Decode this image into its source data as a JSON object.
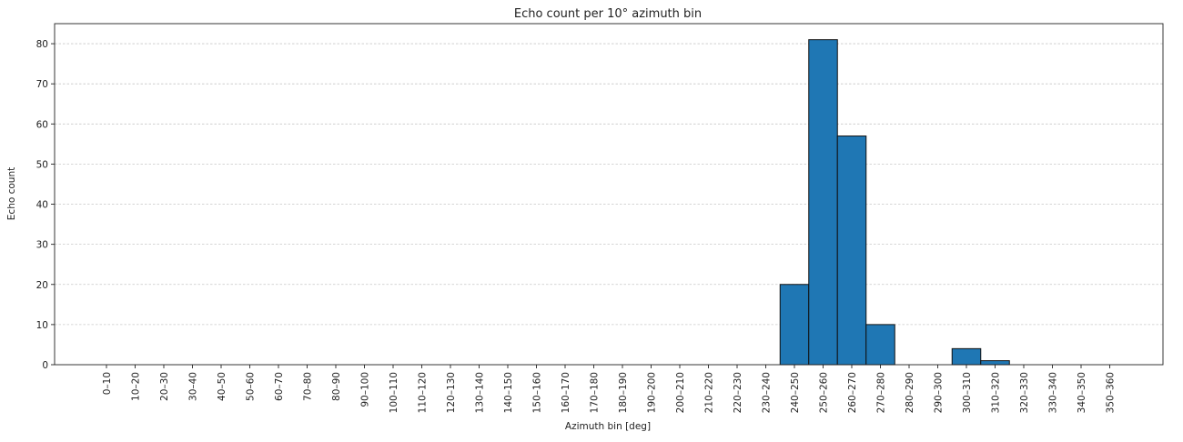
{
  "chart_data": {
    "type": "bar",
    "title": "Echo count per 10° azimuth bin",
    "xlabel": "Azimuth bin [deg]",
    "ylabel": "Echo count",
    "ylim": [
      0,
      85
    ],
    "yticks": [
      0,
      10,
      20,
      30,
      40,
      50,
      60,
      70,
      80
    ],
    "grid": true,
    "bar_color": "#1f77b4",
    "bar_edge_color": "#111111",
    "categories": [
      "0–10",
      "10–20",
      "20–30",
      "30–40",
      "40–50",
      "50–60",
      "60–70",
      "70–80",
      "80–90",
      "90–100",
      "100–110",
      "110–120",
      "120–130",
      "130–140",
      "140–150",
      "150–160",
      "160–170",
      "170–180",
      "180–190",
      "190–200",
      "200–210",
      "210–220",
      "220–230",
      "230–240",
      "240–250",
      "250–260",
      "260–270",
      "270–280",
      "280–290",
      "290–300",
      "300–310",
      "310–320",
      "320–330",
      "330–340",
      "340–350",
      "350–360"
    ],
    "values": [
      0,
      0,
      0,
      0,
      0,
      0,
      0,
      0,
      0,
      0,
      0,
      0,
      0,
      0,
      0,
      0,
      0,
      0,
      0,
      0,
      0,
      0,
      0,
      0,
      20,
      81,
      57,
      10,
      0,
      0,
      4,
      1,
      0,
      0,
      0,
      0
    ]
  }
}
